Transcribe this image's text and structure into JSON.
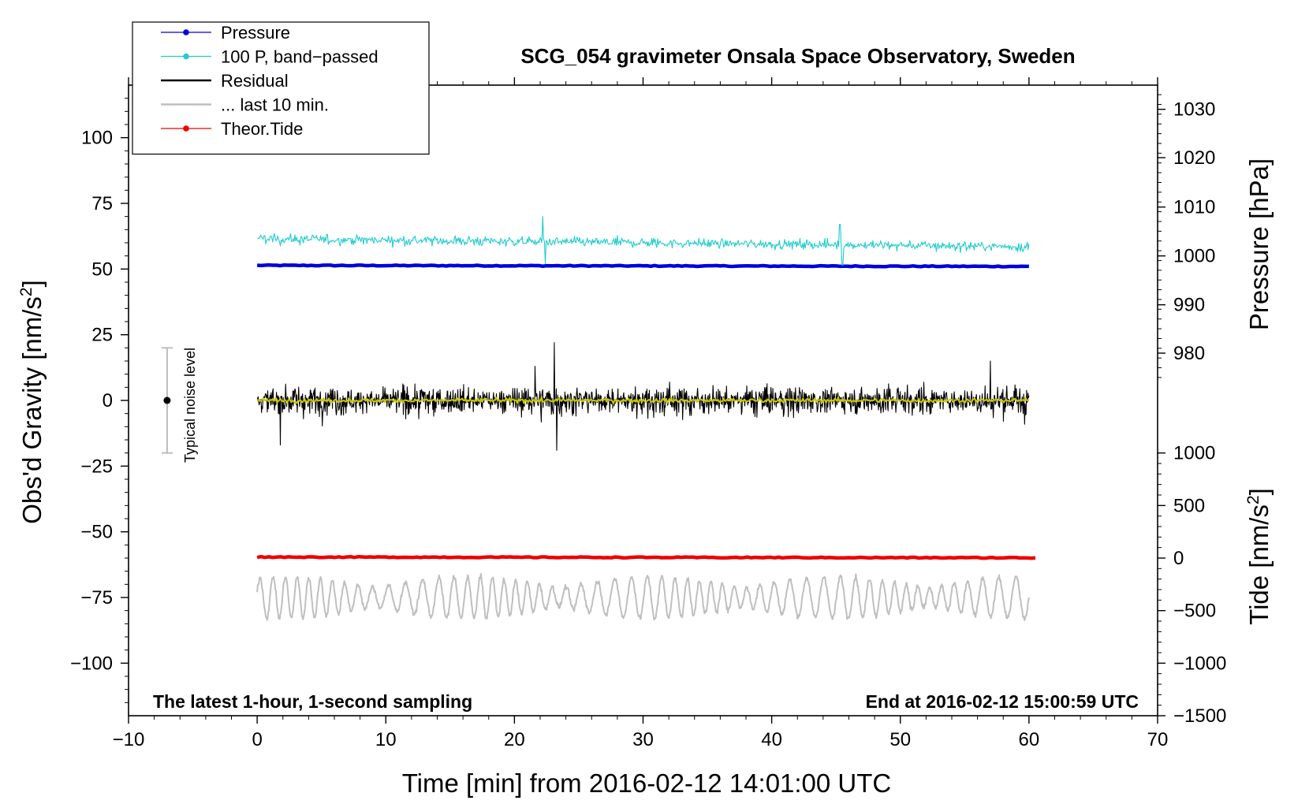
{
  "chart_data": {
    "type": "line",
    "title": "SCG_054 gravimeter Onsala Space Observatory, Sweden",
    "subtitle_left": "The latest 1-hour, 1-second sampling",
    "subtitle_right": "End at 2016-02-12 15:00:59 UTC",
    "xlabel": "Time [min] from 2016-02-12 14:01:00 UTC",
    "ylabel_left": "Obs'd Gravity [nm/s",
    "ylabel_left_suffix": "]",
    "ylabel_left_sup": "2",
    "ylabel_right_pressure": "Pressure [hPa]",
    "ylabel_right_tide": "Tide [nm/s",
    "ylabel_right_tide_suffix": "]",
    "ylabel_right_tide_sup": "2",
    "xlim": [
      -10,
      70
    ],
    "ylim_left": [
      -120,
      120
    ],
    "xticks": [
      {
        "value": -10,
        "label": "−10"
      },
      {
        "value": 0,
        "label": "0"
      },
      {
        "value": 10,
        "label": "10"
      },
      {
        "value": 20,
        "label": "20"
      },
      {
        "value": 30,
        "label": "30"
      },
      {
        "value": 40,
        "label": "40"
      },
      {
        "value": 50,
        "label": "50"
      },
      {
        "value": 60,
        "label": "60"
      },
      {
        "value": 70,
        "label": "70"
      }
    ],
    "yticks_left": [
      {
        "value": 100,
        "label": "100"
      },
      {
        "value": 75,
        "label": "75"
      },
      {
        "value": 50,
        "label": "50"
      },
      {
        "value": 25,
        "label": "25"
      },
      {
        "value": 0,
        "label": "0"
      },
      {
        "value": -25,
        "label": "−25"
      },
      {
        "value": -50,
        "label": "−50"
      },
      {
        "value": -75,
        "label": "−75"
      },
      {
        "value": -100,
        "label": "−100"
      }
    ],
    "yticks_pressure": [
      {
        "value": 1030,
        "label": "1030",
        "gravity_equiv": 110.8
      },
      {
        "value": 1020,
        "label": "1020",
        "gravity_equiv": 92.4
      },
      {
        "value": 1010,
        "label": "1010",
        "gravity_equiv": 73.6
      },
      {
        "value": 1000,
        "label": "1000",
        "gravity_equiv": 55.0
      },
      {
        "value": 990,
        "label": "990",
        "gravity_equiv": 36.4
      },
      {
        "value": 980,
        "label": "980",
        "gravity_equiv": 18.0
      }
    ],
    "yticks_tide": [
      {
        "value": 1000,
        "label": "1000",
        "gravity_equiv": -20.0
      },
      {
        "value": 500,
        "label": "500",
        "gravity_equiv": -40.0
      },
      {
        "value": 0,
        "label": "0",
        "gravity_equiv": -60.0
      },
      {
        "value": -500,
        "label": "−500",
        "gravity_equiv": -80.0
      },
      {
        "value": -1000,
        "label": "−1000",
        "gravity_equiv": -100.0
      },
      {
        "value": -1500,
        "label": "−1500",
        "gravity_equiv": -120.0
      }
    ],
    "legend": {
      "placement": "top-left",
      "entries": [
        {
          "label": "Pressure",
          "color": "#0000dd",
          "marker": true
        },
        {
          "label": "100 P, band−passed",
          "color": "#22cccc",
          "marker": true
        },
        {
          "label": "Residual",
          "color": "#000000",
          "marker": false
        },
        {
          "label": "... last 10 min.",
          "color": "#bfbfbf",
          "marker": false
        },
        {
          "label": "Theor.Tide",
          "color": "#ee0000",
          "marker": true
        }
      ]
    },
    "noise_indicator": {
      "label": "Typical noise level",
      "x": -7,
      "center": 0,
      "low": -20,
      "high": 20
    },
    "series": [
      {
        "name": "Pressure",
        "color": "#0000dd",
        "x_range": [
          0,
          60
        ],
        "y_start": 51.4,
        "y_end": 51.0,
        "style": "thick-line"
      },
      {
        "name": "100 P, band-passed",
        "color": "#22cccc",
        "x_range": [
          0,
          60
        ],
        "y_start": 61.5,
        "y_end": 58.5,
        "noise_amplitude": 2.8,
        "spikes": [
          {
            "x": 22.2,
            "y": 70
          },
          {
            "x": 22.4,
            "y": 52
          },
          {
            "x": 45.3,
            "y": 67
          },
          {
            "x": 45.5,
            "y": 51.5
          }
        ],
        "style": "noisy-line"
      },
      {
        "name": "Residual",
        "color": "#000000",
        "x_range": [
          0,
          60
        ],
        "y_mean": 0,
        "noise_amplitude": 6.5,
        "spikes": [
          {
            "x": 23.1,
            "y": 22
          },
          {
            "x": 23.3,
            "y": -19
          },
          {
            "x": 1.8,
            "y": -17
          },
          {
            "x": 21.6,
            "y": 13
          },
          {
            "x": 57.0,
            "y": 15
          }
        ],
        "style": "noisy-line"
      },
      {
        "name": "Residual smoothed",
        "color": "#c8c800",
        "x_range": [
          0,
          60
        ],
        "y_mean": 0,
        "noise_amplitude": 1.2,
        "style": "noisy-line"
      },
      {
        "name": "... last 10 min.",
        "color": "#bfbfbf",
        "x_range": [
          0,
          60
        ],
        "y_mean": -75,
        "oscillation_amplitude": 8,
        "style": "oscillation"
      },
      {
        "name": "Theor.Tide",
        "color": "#ee0000",
        "x_range": [
          0,
          60.5
        ],
        "y_start": -59.6,
        "y_end": -59.9,
        "style": "thick-line"
      }
    ]
  }
}
